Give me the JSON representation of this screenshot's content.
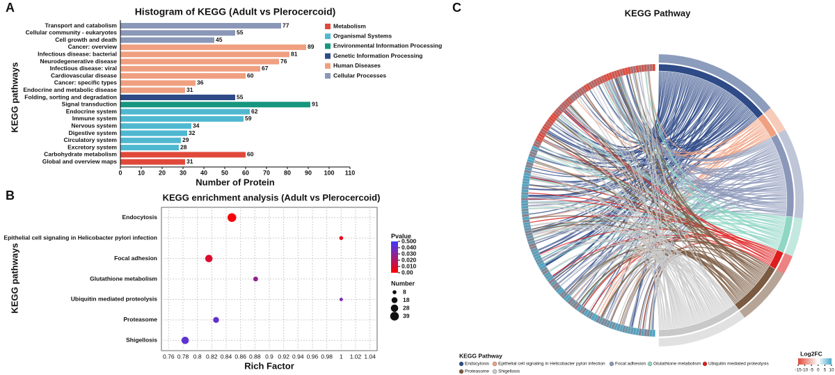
{
  "panel_labels": [
    "A",
    "B",
    "C"
  ],
  "chart_data": [
    {
      "type": "bar",
      "orientation": "horizontal",
      "title": "Histogram of KEGG (Adult vs Plerocercoid)",
      "xlabel": "Number of Protein",
      "ylabel": "KEGG pathways",
      "xlim": [
        0,
        110
      ],
      "xticks": [
        0,
        10,
        20,
        30,
        40,
        50,
        60,
        70,
        80,
        90,
        100,
        110
      ],
      "series": [
        {
          "name": "Metabolism",
          "color": "#e0493a",
          "categories": [
            "Carbohydrate metabolism",
            "Global and overview maps"
          ],
          "values": [
            60,
            31
          ]
        },
        {
          "name": "Organismal Systems",
          "color": "#4fb8d0",
          "categories": [
            "Endocrine system",
            "Immune system",
            "Nervous system",
            "Digestive system",
            "Circulatory system",
            "Excretory system"
          ],
          "values": [
            62,
            59,
            34,
            32,
            29,
            28
          ]
        },
        {
          "name": "Environmental Information Processing",
          "color": "#16967e",
          "categories": [
            "Signal transduction"
          ],
          "values": [
            91
          ]
        },
        {
          "name": "Genetic Information Processing",
          "color": "#2e4a87",
          "categories": [
            "Folding, sorting and degradation"
          ],
          "values": [
            55
          ]
        },
        {
          "name": "Human Diseases",
          "color": "#f0a080",
          "categories": [
            "Cancer: overview",
            "Infectious disease: bacterial",
            "Neurodegenerative disease",
            "Infectious disease: viral",
            "Cardiovascular disease",
            "Cancer: specific types",
            "Endocrine and metabolic disease"
          ],
          "values": [
            89,
            81,
            76,
            67,
            60,
            36,
            31
          ]
        },
        {
          "name": "Cellular Processes",
          "color": "#8b97b8",
          "categories": [
            "Transport and catabolism",
            "Cellular community - eukaryotes",
            "Cell growth and death"
          ],
          "values": [
            77,
            55,
            45
          ]
        }
      ]
    },
    {
      "type": "bubble",
      "title": "KEGG enrichment analysis (Adult vs Plerocercoid)",
      "xlabel": "Rich Factor",
      "ylabel": "KEGG pathways",
      "categories": [
        "Endocytosis",
        "Epithelial cell signaling in Helicobacter pylori infection",
        "Focal adhesion",
        "Glutathione metabolism",
        "Ubiquitin mediated proteolysis",
        "Proteasome",
        "Shigellosis"
      ],
      "x": [
        0.848,
        1,
        0.816,
        0.881,
        1,
        0.826,
        0.783
      ],
      "size": [
        39,
        8,
        28,
        12,
        6,
        18,
        28
      ],
      "pvalue": [
        0.002,
        0.006,
        0.009,
        0.028,
        0.035,
        0.045,
        0.1
      ],
      "xlim": [
        0.75,
        1.05
      ],
      "xticks": [
        0.76,
        0.78,
        0.8,
        0.82,
        0.84,
        0.86,
        0.88,
        0.9,
        0.92,
        0.94,
        0.96,
        0.98,
        1,
        1.02,
        1.04
      ],
      "grid": true,
      "colorbar": {
        "title": "Pvalue",
        "low_color": "#ff0000",
        "high_color": "#3c3cff",
        "ticks": [
          {
            "value": 0.5,
            "label": "0.500"
          },
          {
            "value": 0.04,
            "label": "0.040"
          },
          {
            "value": 0.03,
            "label": "0.030"
          },
          {
            "value": 0.02,
            "label": "0.020"
          },
          {
            "value": 0.01,
            "label": "0.010"
          },
          {
            "value": 0,
            "label": "0.00"
          }
        ]
      },
      "size_legend": {
        "title": "Number",
        "values": [
          8,
          18,
          28,
          39
        ]
      }
    },
    {
      "type": "chord",
      "title": "KEGG Pathway",
      "legend_title": "KEGG Pathway",
      "series": [
        {
          "name": "Endocytosis",
          "color": "#2e4a87"
        },
        {
          "name": "Epithelial cell signaling in Helicobacter pylori infection",
          "color": "#f0a080"
        },
        {
          "name": "Focal adhesion",
          "color": "#8b97b8"
        },
        {
          "name": "Glutathione metabolism",
          "color": "#8fd6c4"
        },
        {
          "name": "Ubiquitin mediated proteolysis",
          "color": "#dd1c1c"
        },
        {
          "name": "Proteasome",
          "color": "#7a5a40"
        },
        {
          "name": "Shigellosis",
          "color": "#c8c8c8"
        }
      ],
      "colorbar": {
        "title": "Log2FC",
        "lim": [
          -15,
          10
        ],
        "ticks": [
          -15,
          -10,
          -5,
          0,
          5,
          10
        ],
        "low_color": "#e0493a",
        "high_color": "#4aa8c8"
      }
    }
  ]
}
